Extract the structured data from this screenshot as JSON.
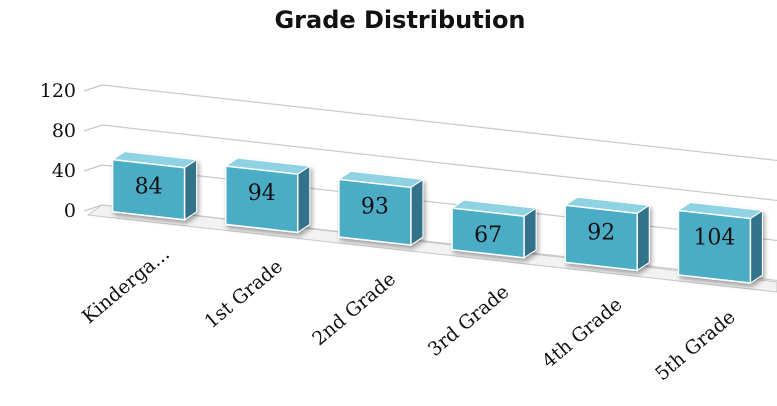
{
  "chart_data": {
    "type": "bar",
    "title": "Grade Distribution",
    "xlabel": "",
    "ylabel": "",
    "ylim": [
      0,
      120
    ],
    "yticks": [
      "0",
      "40",
      "80",
      "120"
    ],
    "categories": [
      "Kinderga...",
      "1st Grade",
      "2nd Grade",
      "3rd Grade",
      "4th Grade",
      "5th Grade"
    ],
    "values": [
      84,
      94,
      93,
      67,
      92,
      104
    ],
    "data_labels": [
      "84",
      "94",
      "93",
      "67",
      "92",
      "104"
    ],
    "grid": true,
    "style": "3d",
    "colors": {
      "bar_front": "#4bacc6",
      "bar_side": "#31728a",
      "bar_top": "#8fd2e3",
      "bar_edge": "#ffffff"
    }
  }
}
